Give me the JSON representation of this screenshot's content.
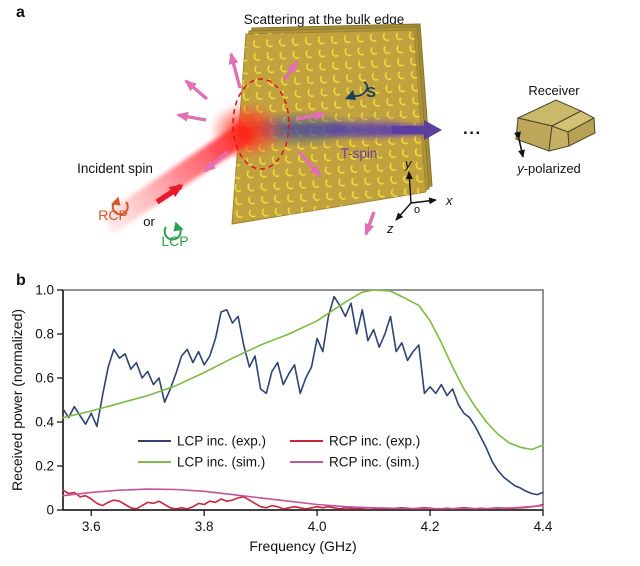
{
  "figure": {
    "panel_a": {
      "label": "a",
      "title": "Scattering at the bulk edge",
      "incident_spin": "Incident spin",
      "rcp": "RCP",
      "or": "or",
      "lcp": "LCP",
      "s": "S",
      "t_spin": "T-spin",
      "dots": "...",
      "receiver": "Receiver",
      "polarized_prefix": "y",
      "polarized_suffix": "-polarized",
      "axis_x": "x",
      "axis_y": "y",
      "axis_z": "z",
      "origin": "o",
      "colors": {
        "rcp_label": "#d4582e",
        "lcp_label": "#2f9e4f",
        "t_spin_label": "#6b3fa0",
        "s_label": "#1c3f5e",
        "slab_gold": "#c2a23f",
        "ring_yellow": "#efdf3c",
        "incident_beam_red": "#e8192c",
        "transmitted_purple": "#5b3f9e",
        "scatter_pink": "#e06fb4"
      }
    },
    "panel_b": {
      "label": "b"
    }
  },
  "chart_data": {
    "type": "line",
    "title": "",
    "xlabel": "Frequency (GHz)",
    "ylabel": "Received power (normalized)",
    "xlim": [
      3.55,
      4.4
    ],
    "ylim": [
      0,
      1.0
    ],
    "x_ticks": [
      3.6,
      3.8,
      4.0,
      4.2,
      4.4
    ],
    "y_ticks": [
      0,
      0.2,
      0.4,
      0.6,
      0.8,
      1.0
    ],
    "grid": false,
    "legend_position": "inside lower-center, two columns",
    "series": [
      {
        "name": "LCP inc. (exp.)",
        "color": "#2e4372",
        "x_start": 3.55,
        "x_step": 0.01,
        "y": [
          0.46,
          0.42,
          0.47,
          0.43,
          0.39,
          0.44,
          0.38,
          0.52,
          0.65,
          0.73,
          0.69,
          0.71,
          0.64,
          0.67,
          0.6,
          0.63,
          0.57,
          0.6,
          0.49,
          0.55,
          0.62,
          0.7,
          0.73,
          0.67,
          0.72,
          0.66,
          0.7,
          0.78,
          0.9,
          0.91,
          0.85,
          0.88,
          0.75,
          0.65,
          0.7,
          0.55,
          0.53,
          0.63,
          0.67,
          0.57,
          0.62,
          0.66,
          0.53,
          0.6,
          0.65,
          0.78,
          0.72,
          0.88,
          0.97,
          0.93,
          0.88,
          0.94,
          0.8,
          0.91,
          0.77,
          0.82,
          0.74,
          0.8,
          0.88,
          0.72,
          0.76,
          0.68,
          0.72,
          0.75,
          0.53,
          0.56,
          0.53,
          0.57,
          0.52,
          0.55,
          0.48,
          0.44,
          0.42,
          0.38,
          0.33,
          0.28,
          0.22,
          0.18,
          0.15,
          0.13,
          0.11,
          0.1,
          0.085,
          0.075,
          0.07,
          0.08
        ]
      },
      {
        "name": "LCP inc. (sim.)",
        "color": "#7dbb44",
        "x": [
          3.55,
          3.6,
          3.65,
          3.7,
          3.75,
          3.8,
          3.85,
          3.9,
          3.95,
          4.0,
          4.05,
          4.08,
          4.1,
          4.13,
          4.15,
          4.18,
          4.2,
          4.22,
          4.24,
          4.26,
          4.28,
          4.3,
          4.32,
          4.34,
          4.36,
          4.38,
          4.4
        ],
        "y": [
          0.42,
          0.45,
          0.485,
          0.52,
          0.565,
          0.625,
          0.69,
          0.75,
          0.8,
          0.86,
          0.945,
          0.99,
          1.0,
          0.995,
          0.97,
          0.93,
          0.86,
          0.76,
          0.65,
          0.55,
          0.47,
          0.4,
          0.345,
          0.305,
          0.285,
          0.275,
          0.295
        ]
      },
      {
        "name": "RCP inc. (exp.)",
        "color": "#c9263c",
        "x_start": 3.55,
        "x_step": 0.01,
        "y": [
          0.09,
          0.075,
          0.08,
          0.06,
          0.065,
          0.05,
          0.03,
          0.02,
          0.035,
          0.045,
          0.04,
          0.025,
          0.01,
          0.005,
          0.02,
          0.035,
          0.03,
          0.04,
          0.025,
          0.01,
          0.005,
          0.01,
          0.005,
          0.015,
          0.03,
          0.025,
          0.04,
          0.035,
          0.05,
          0.04,
          0.045,
          0.055,
          0.06,
          0.045,
          0.03,
          0.015,
          0.01,
          0.02,
          0.015,
          0.005,
          0.01,
          0.015,
          0.01,
          0.005,
          0.01,
          0.015,
          0.01,
          0.015,
          0.01,
          0.005,
          0.01,
          0.008,
          0.005,
          0.008,
          0.01,
          0.008,
          0.005,
          0.008,
          0.005,
          0.008,
          0.01,
          0.008,
          0.005,
          0.008,
          0.01,
          0.008,
          0.005,
          0.005,
          0.008,
          0.005,
          0.008,
          0.01,
          0.008,
          0.005,
          0.008,
          0.005,
          0.008,
          0.01,
          0.008,
          0.005,
          0.008,
          0.01,
          0.012,
          0.015,
          0.018,
          0.025
        ]
      },
      {
        "name": "RCP inc. (sim.)",
        "color": "#c2549c",
        "x": [
          3.55,
          3.6,
          3.65,
          3.7,
          3.75,
          3.8,
          3.85,
          3.9,
          3.95,
          4.0,
          4.05,
          4.1,
          4.15,
          4.2,
          4.25,
          4.3,
          4.35,
          4.4
        ],
        "y": [
          0.065,
          0.08,
          0.09,
          0.095,
          0.093,
          0.085,
          0.07,
          0.055,
          0.04,
          0.025,
          0.015,
          0.01,
          0.007,
          0.006,
          0.006,
          0.007,
          0.01,
          0.02
        ]
      }
    ]
  }
}
